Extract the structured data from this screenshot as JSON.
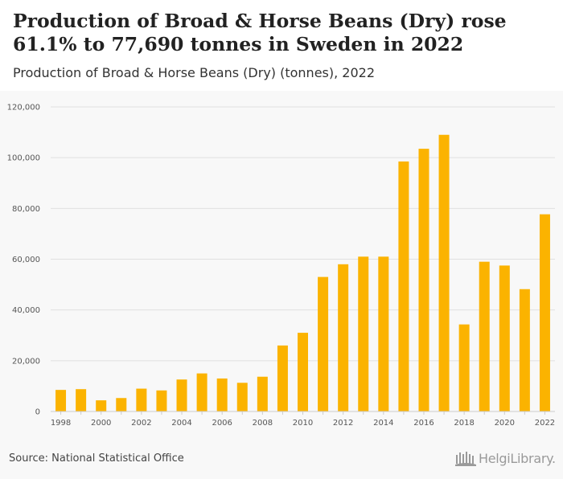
{
  "header": {
    "title": "Production of Broad & Horse Beans (Dry) rose 61.1% to 77,690 tonnes in Sweden in 2022",
    "subtitle": "Production of Broad & Horse Beans (Dry) (tonnes), 2022"
  },
  "footer": {
    "source": "Source: National Statistical Office",
    "logo_text": "HelgiLibrary."
  },
  "colors": {
    "bar": "#fbb300",
    "grid": "#e0e0e0",
    "chart_background": "#f8f8f8"
  },
  "chart_data": {
    "type": "bar",
    "title": "",
    "xlabel": "",
    "ylabel": "",
    "ylim": [
      0,
      120000
    ],
    "yticks": [
      0,
      20000,
      40000,
      60000,
      80000,
      100000,
      120000
    ],
    "ytick_labels": [
      "0",
      "20,000",
      "40,000",
      "60,000",
      "80,000",
      "100,000",
      "120,000"
    ],
    "xtick_labels": [
      "1998",
      "2000",
      "2002",
      "2004",
      "2006",
      "2008",
      "2010",
      "2012",
      "2014",
      "2016",
      "2018",
      "2020",
      "2022"
    ],
    "grid": true,
    "categories": [
      "1998",
      "1999",
      "2000",
      "2001",
      "2002",
      "2003",
      "2004",
      "2005",
      "2006",
      "2007",
      "2008",
      "2009",
      "2010",
      "2011",
      "2012",
      "2013",
      "2014",
      "2015",
      "2016",
      "2017",
      "2018",
      "2019",
      "2020",
      "2021",
      "2022"
    ],
    "values": [
      8500,
      8800,
      4400,
      5300,
      9000,
      8300,
      12600,
      15000,
      13000,
      11300,
      13700,
      26000,
      31000,
      53000,
      58000,
      61000,
      61000,
      98500,
      103500,
      109000,
      34300,
      59000,
      57500,
      48200,
      77690
    ]
  }
}
